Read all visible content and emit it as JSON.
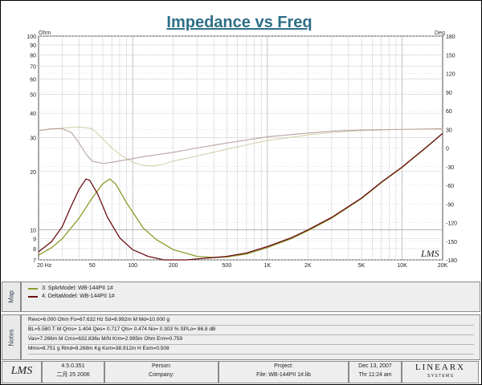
{
  "chart_data": {
    "type": "line",
    "title": "Impedance vs Freq",
    "left_axis": {
      "unit": "Ohm",
      "scale": "log",
      "ylim": [
        7,
        100
      ],
      "ticks": [
        {
          "v": 7,
          "label": "7"
        },
        {
          "v": 8,
          "label": "8"
        },
        {
          "v": 9,
          "label": "9"
        },
        {
          "v": 10,
          "label": "10"
        },
        {
          "v": 20,
          "label": "20"
        },
        {
          "v": 30,
          "label": "30"
        },
        {
          "v": 40,
          "label": "40"
        },
        {
          "v": 50,
          "label": "50"
        },
        {
          "v": 60,
          "label": "60"
        },
        {
          "v": 70,
          "label": "70"
        },
        {
          "v": 80,
          "label": "80"
        },
        {
          "v": 90,
          "label": "90"
        },
        {
          "v": 100,
          "label": "100"
        }
      ]
    },
    "right_axis": {
      "unit": "Deg",
      "ylim": [
        -180,
        180
      ],
      "ticks": [
        "-180",
        "-150",
        "-120",
        "-90",
        "-60",
        "-30",
        "0",
        "30",
        "60",
        "90",
        "120",
        "150",
        "180"
      ]
    },
    "x_axis": {
      "scale": "log",
      "xlim": [
        20,
        20000
      ],
      "ticks": [
        {
          "v": 20,
          "label": "20  Hz"
        },
        {
          "v": 50,
          "label": "50"
        },
        {
          "v": 100,
          "label": "100"
        },
        {
          "v": 200,
          "label": "200"
        },
        {
          "v": 500,
          "label": "500"
        },
        {
          "v": 1000,
          "label": "1K"
        },
        {
          "v": 2000,
          "label": "2K"
        },
        {
          "v": 5000,
          "label": "5K"
        },
        {
          "v": 10000,
          "label": "10K"
        },
        {
          "v": 20000,
          "label": "20K"
        }
      ]
    },
    "series": [
      {
        "name": "3: SpkrModel: WB-144PII  1#",
        "axis": "left",
        "color": "#8c9a2a",
        "points": [
          [
            20,
            7.4
          ],
          [
            25,
            8.1
          ],
          [
            30,
            9.0
          ],
          [
            40,
            11.5
          ],
          [
            50,
            14.6
          ],
          [
            60,
            17.3
          ],
          [
            67.6,
            18.3
          ],
          [
            75,
            17.2
          ],
          [
            90,
            13.8
          ],
          [
            120,
            10.2
          ],
          [
            150,
            8.9
          ],
          [
            200,
            7.9
          ],
          [
            300,
            7.3
          ],
          [
            400,
            7.2
          ],
          [
            500,
            7.25
          ],
          [
            700,
            7.5
          ],
          [
            1000,
            8.1
          ],
          [
            1500,
            9.0
          ],
          [
            2000,
            9.9
          ],
          [
            3000,
            11.5
          ],
          [
            5000,
            14.5
          ],
          [
            7000,
            17.5
          ],
          [
            10000,
            21.0
          ],
          [
            15000,
            26.5
          ],
          [
            20000,
            31.5
          ]
        ]
      },
      {
        "name": "4: DeltaModel: WB-144PII  1#",
        "axis": "left",
        "color": "#6b0f14",
        "points": [
          [
            20,
            7.7
          ],
          [
            25,
            8.7
          ],
          [
            30,
            10.4
          ],
          [
            35,
            13.3
          ],
          [
            40,
            16.2
          ],
          [
            45,
            18.3
          ],
          [
            48,
            18.0
          ],
          [
            55,
            15.3
          ],
          [
            65,
            11.6
          ],
          [
            80,
            9.1
          ],
          [
            100,
            7.9
          ],
          [
            130,
            7.3
          ],
          [
            170,
            7.0
          ],
          [
            250,
            7.0
          ],
          [
            400,
            7.2
          ],
          [
            500,
            7.3
          ],
          [
            700,
            7.6
          ],
          [
            1000,
            8.2
          ],
          [
            1500,
            9.1
          ],
          [
            2000,
            10.0
          ],
          [
            3000,
            11.6
          ],
          [
            5000,
            14.6
          ],
          [
            7000,
            17.6
          ],
          [
            10000,
            21.1
          ],
          [
            15000,
            26.6
          ],
          [
            20000,
            31.5
          ]
        ]
      },
      {
        "name": "3: SpkrModel: WB-144PII  1# phase",
        "axis": "right",
        "color": "#d5d1ac",
        "points": [
          [
            20,
            28
          ],
          [
            30,
            32
          ],
          [
            40,
            34
          ],
          [
            50,
            31
          ],
          [
            60,
            15
          ],
          [
            70,
            0
          ],
          [
            80,
            -10
          ],
          [
            100,
            -23
          ],
          [
            120,
            -28
          ],
          [
            140,
            -29
          ],
          [
            170,
            -26
          ],
          [
            200,
            -21
          ],
          [
            300,
            -13
          ],
          [
            500,
            -2
          ],
          [
            700,
            5
          ],
          [
            1000,
            12
          ],
          [
            2000,
            21
          ],
          [
            3000,
            25
          ],
          [
            5000,
            28
          ],
          [
            10000,
            30
          ],
          [
            20000,
            30
          ]
        ]
      },
      {
        "name": "4: DeltaModel: WB-144PII  1# phase",
        "axis": "right",
        "color": "#b8a4a0",
        "points": [
          [
            20,
            28
          ],
          [
            25,
            31
          ],
          [
            30,
            31
          ],
          [
            35,
            25
          ],
          [
            40,
            8
          ],
          [
            45,
            -10
          ],
          [
            50,
            -21
          ],
          [
            60,
            -25
          ],
          [
            70,
            -23
          ],
          [
            90,
            -19
          ],
          [
            120,
            -14
          ],
          [
            200,
            -7
          ],
          [
            300,
            0
          ],
          [
            500,
            8
          ],
          [
            1000,
            18
          ],
          [
            2000,
            24
          ],
          [
            3000,
            27
          ],
          [
            5000,
            29
          ],
          [
            10000,
            30
          ],
          [
            20000,
            31
          ]
        ]
      }
    ]
  },
  "brand_mark": "LMS",
  "map_tab": "Map",
  "notes_tab": "Notes",
  "legend": [
    {
      "label": "3: SpkrModel: WB-144PII  1#",
      "color": "#8c9a2a"
    },
    {
      "label": "4: DeltaModel: WB-144PII  1#",
      "color": "#6b0f14"
    }
  ],
  "notes": [
    "Revc=6.000 Ohm  Fo=67.632 Hz  Sd=8.992m M    Md=10.000 g",
    "BL=5.580 T·M  Qms= 1.404  Qes= 0.717  Qts= 0.474  No= 0.303 %  SPLo= 86.8 dB",
    "Vas=7.266m M    Cms=632.836u M/N  Krm=2.995m Ohm  Erm=0.759",
    "Mms=8.751 g  Rmd=8.268m Kg  Kxm=38.912m H  Exm=0.508"
  ],
  "footer": {
    "logo": "LMS",
    "version": "4.5.0.351",
    "version_date": "二月 25 2006",
    "person_label": "Person:",
    "company_label": "Company:",
    "project_label": "Project:",
    "file_label": "File: WB-144PII 1#.lib",
    "date": "Dec 13, 2007",
    "time": "Thr 11:24 am",
    "brand": "LINEARX",
    "brand_sub": "S Y S T E M S"
  }
}
